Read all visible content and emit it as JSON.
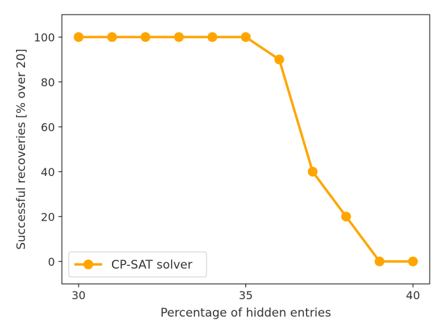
{
  "chart_data": {
    "type": "line",
    "title": "",
    "xlabel": "Percentage of hidden entries",
    "ylabel": "Successful recoveries [% over 20]",
    "xlim": [
      29.5,
      40.5
    ],
    "ylim": [
      -10,
      110
    ],
    "xticks": [
      30,
      35,
      40
    ],
    "yticks": [
      0,
      20,
      40,
      60,
      80,
      100
    ],
    "grid": false,
    "legend_position": "lower-left",
    "series": [
      {
        "name": "CP-SAT solver",
        "color": "#FFA500",
        "marker": "circle",
        "x": [
          30,
          31,
          32,
          33,
          34,
          35,
          36,
          37,
          38,
          39,
          40
        ],
        "y": [
          100,
          100,
          100,
          100,
          100,
          100,
          90,
          40,
          20,
          0,
          0
        ]
      }
    ]
  }
}
